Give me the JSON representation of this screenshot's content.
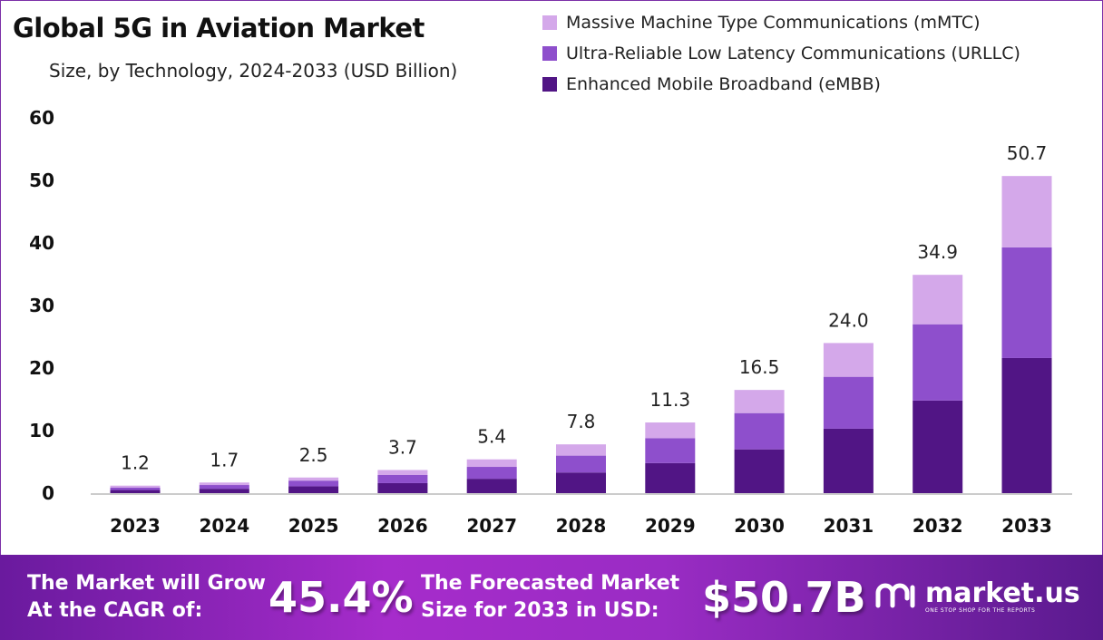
{
  "chart_data": {
    "type": "bar",
    "stacked": true,
    "title": "Global 5G in Aviation Market",
    "subtitle": "Size, by Technology, 2024-2033 (USD Billion)",
    "categories": [
      "2023",
      "2024",
      "2025",
      "2026",
      "2027",
      "2028",
      "2029",
      "2030",
      "2031",
      "2032",
      "2033"
    ],
    "series": [
      {
        "name": "Enhanced Mobile Broadband (eMBB)",
        "color": "#511585",
        "values": [
          0.5,
          0.7,
          1.1,
          1.6,
          2.3,
          3.3,
          4.8,
          7.0,
          10.3,
          14.8,
          21.6
        ]
      },
      {
        "name": "Ultra-Reliable Low Latency Communications (URLLC)",
        "color": "#8e4fcc",
        "values": [
          0.4,
          0.6,
          0.9,
          1.3,
          1.9,
          2.7,
          4.0,
          5.8,
          8.3,
          12.2,
          17.7
        ]
      },
      {
        "name": "Massive Machine Type Communications (mMTC)",
        "color": "#d4a8ea",
        "values": [
          0.3,
          0.4,
          0.5,
          0.8,
          1.2,
          1.8,
          2.5,
          3.7,
          5.4,
          7.9,
          11.4
        ]
      }
    ],
    "totals": [
      "1.2",
      "1.7",
      "2.5",
      "3.7",
      "5.4",
      "7.8",
      "11.3",
      "16.5",
      "24.0",
      "34.9",
      "50.7"
    ],
    "yticks": [
      "0",
      "10",
      "20",
      "30",
      "40",
      "50",
      "60"
    ],
    "ylim": [
      0,
      60
    ],
    "grid": false,
    "legend_position": "top-right",
    "legend_order": [
      2,
      1,
      0
    ]
  },
  "banner": {
    "cagr_label_1": "The Market will Grow",
    "cagr_label_2": "At the CAGR of:",
    "cagr_value": "45.4%",
    "forecast_label_1": "The Forecasted Market",
    "forecast_label_2": "Size for 2033 in USD:",
    "forecast_value": "$50.7B",
    "logo_name": "market.us",
    "logo_tagline": "ONE STOP SHOP FOR THE REPORTS"
  }
}
